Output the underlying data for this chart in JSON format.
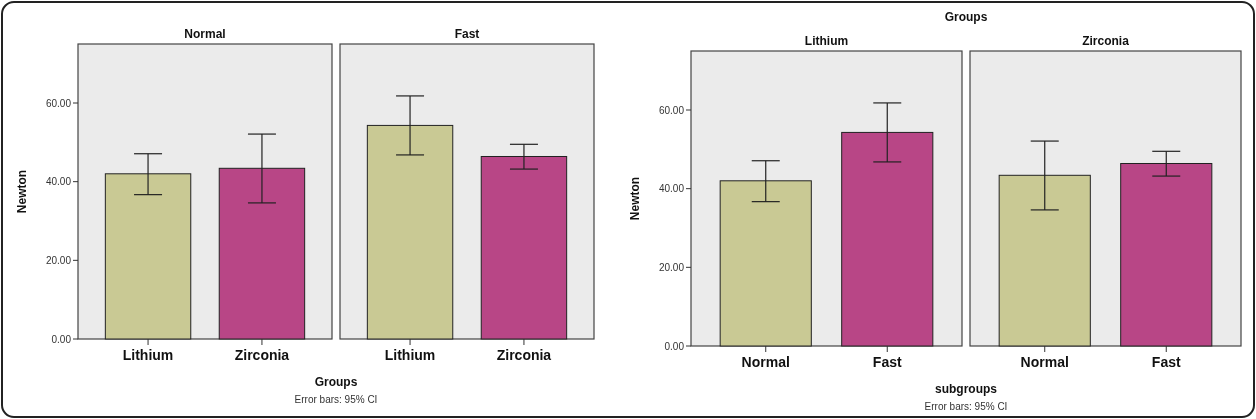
{
  "chart_data": [
    {
      "type": "bar",
      "title": "Normal",
      "ylabel": "Newton",
      "xlabel": "Groups",
      "annotations": [
        "Error bars: 95% CI"
      ],
      "categories": [
        "Lithium",
        "Zirconia"
      ],
      "values": [
        42.0,
        43.4
      ],
      "colors": [
        "#c9c994",
        "#b84686"
      ],
      "errors": [
        [
          36.7,
          47.1
        ],
        [
          34.6,
          52.1
        ]
      ],
      "ylim": [
        0,
        75
      ],
      "yticks": [
        {
          "value": 0,
          "label": "0.00"
        },
        {
          "value": 20,
          "label": "20.00"
        },
        {
          "value": 40,
          "label": "40.00"
        },
        {
          "value": 60,
          "label": "60.00"
        }
      ]
    },
    {
      "type": "bar",
      "title": "Fast",
      "categories": [
        "Lithium",
        "Zirconia"
      ],
      "values": [
        54.3,
        46.4
      ],
      "colors": [
        "#c9c994",
        "#b84686"
      ],
      "errors": [
        [
          46.8,
          61.8
        ],
        [
          43.2,
          49.5
        ]
      ],
      "ylim": [
        0,
        75
      ],
      "tick_labels": "x"
    },
    {
      "type": "bar",
      "title": "Lithium",
      "subtitle": "Groups",
      "ylabel": "Newton",
      "xlabel": "subgroups",
      "annotations": [
        "Error bars: 95% CI"
      ],
      "categories": [
        "Normal",
        "Fast"
      ],
      "values": [
        42.0,
        54.3
      ],
      "colors": [
        "#c9c994",
        "#b84686"
      ],
      "errors": [
        [
          36.7,
          47.1
        ],
        [
          46.8,
          61.8
        ]
      ],
      "ylim": [
        0,
        75
      ],
      "yticks": [
        {
          "value": 0,
          "label": "0.00"
        },
        {
          "value": 20,
          "label": "20.00"
        },
        {
          "value": 40,
          "label": "40.00"
        },
        {
          "value": 60,
          "label": "60.00"
        }
      ]
    },
    {
      "type": "bar",
      "title": "Zirconia",
      "categories": [
        "Normal",
        "Fast"
      ],
      "values": [
        43.4,
        46.4
      ],
      "colors": [
        "#c9c994",
        "#b84686"
      ],
      "errors": [
        [
          34.6,
          52.1
        ],
        [
          43.2,
          49.5
        ]
      ],
      "ylim": [
        0,
        75
      ],
      "tick_labels": "x"
    }
  ]
}
